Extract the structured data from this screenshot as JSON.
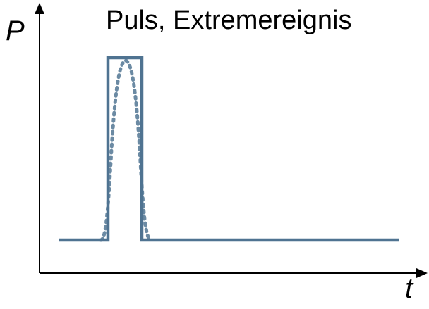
{
  "title": "Puls, Extremereignis",
  "axes": {
    "y_label": "P",
    "x_label": "t"
  },
  "colors": {
    "signal": "#4f7391",
    "envelope": "#6b8aa3",
    "axis": "#000000"
  }
}
